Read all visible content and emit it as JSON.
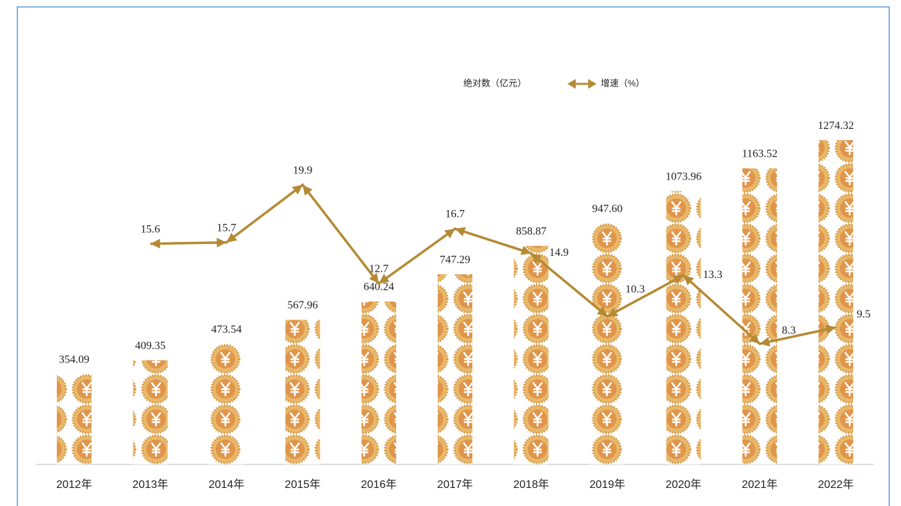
{
  "chart_data": {
    "type": "bar-line",
    "categories": [
      "2012年",
      "2013年",
      "2014年",
      "2015年",
      "2016年",
      "2017年",
      "2018年",
      "2019年",
      "2020年",
      "2021年",
      "2022年"
    ],
    "series": [
      {
        "name": "绝对数（亿元）",
        "type": "bar",
        "color": "#e0a55a",
        "values": [
          354.09,
          409.35,
          473.54,
          567.96,
          640.24,
          747.29,
          858.87,
          947.6,
          1073.96,
          1163.52,
          1274.32
        ],
        "value_labels": [
          "354.09",
          "409.35",
          "473.54",
          "567.96",
          "640.24",
          "747.29",
          "858.87",
          "947.60",
          "1073.96",
          "1163.52",
          "1274.32"
        ]
      },
      {
        "name": "增速（%）",
        "type": "line",
        "axis": "y2",
        "color": "#b48a35",
        "values": [
          null,
          15.6,
          15.7,
          19.9,
          12.7,
          16.7,
          14.9,
          10.3,
          13.3,
          8.3,
          9.5
        ]
      }
    ],
    "ylim": [
      0,
      1400
    ],
    "y2lim": [
      -0.5,
      25.5
    ],
    "legend": "top"
  }
}
